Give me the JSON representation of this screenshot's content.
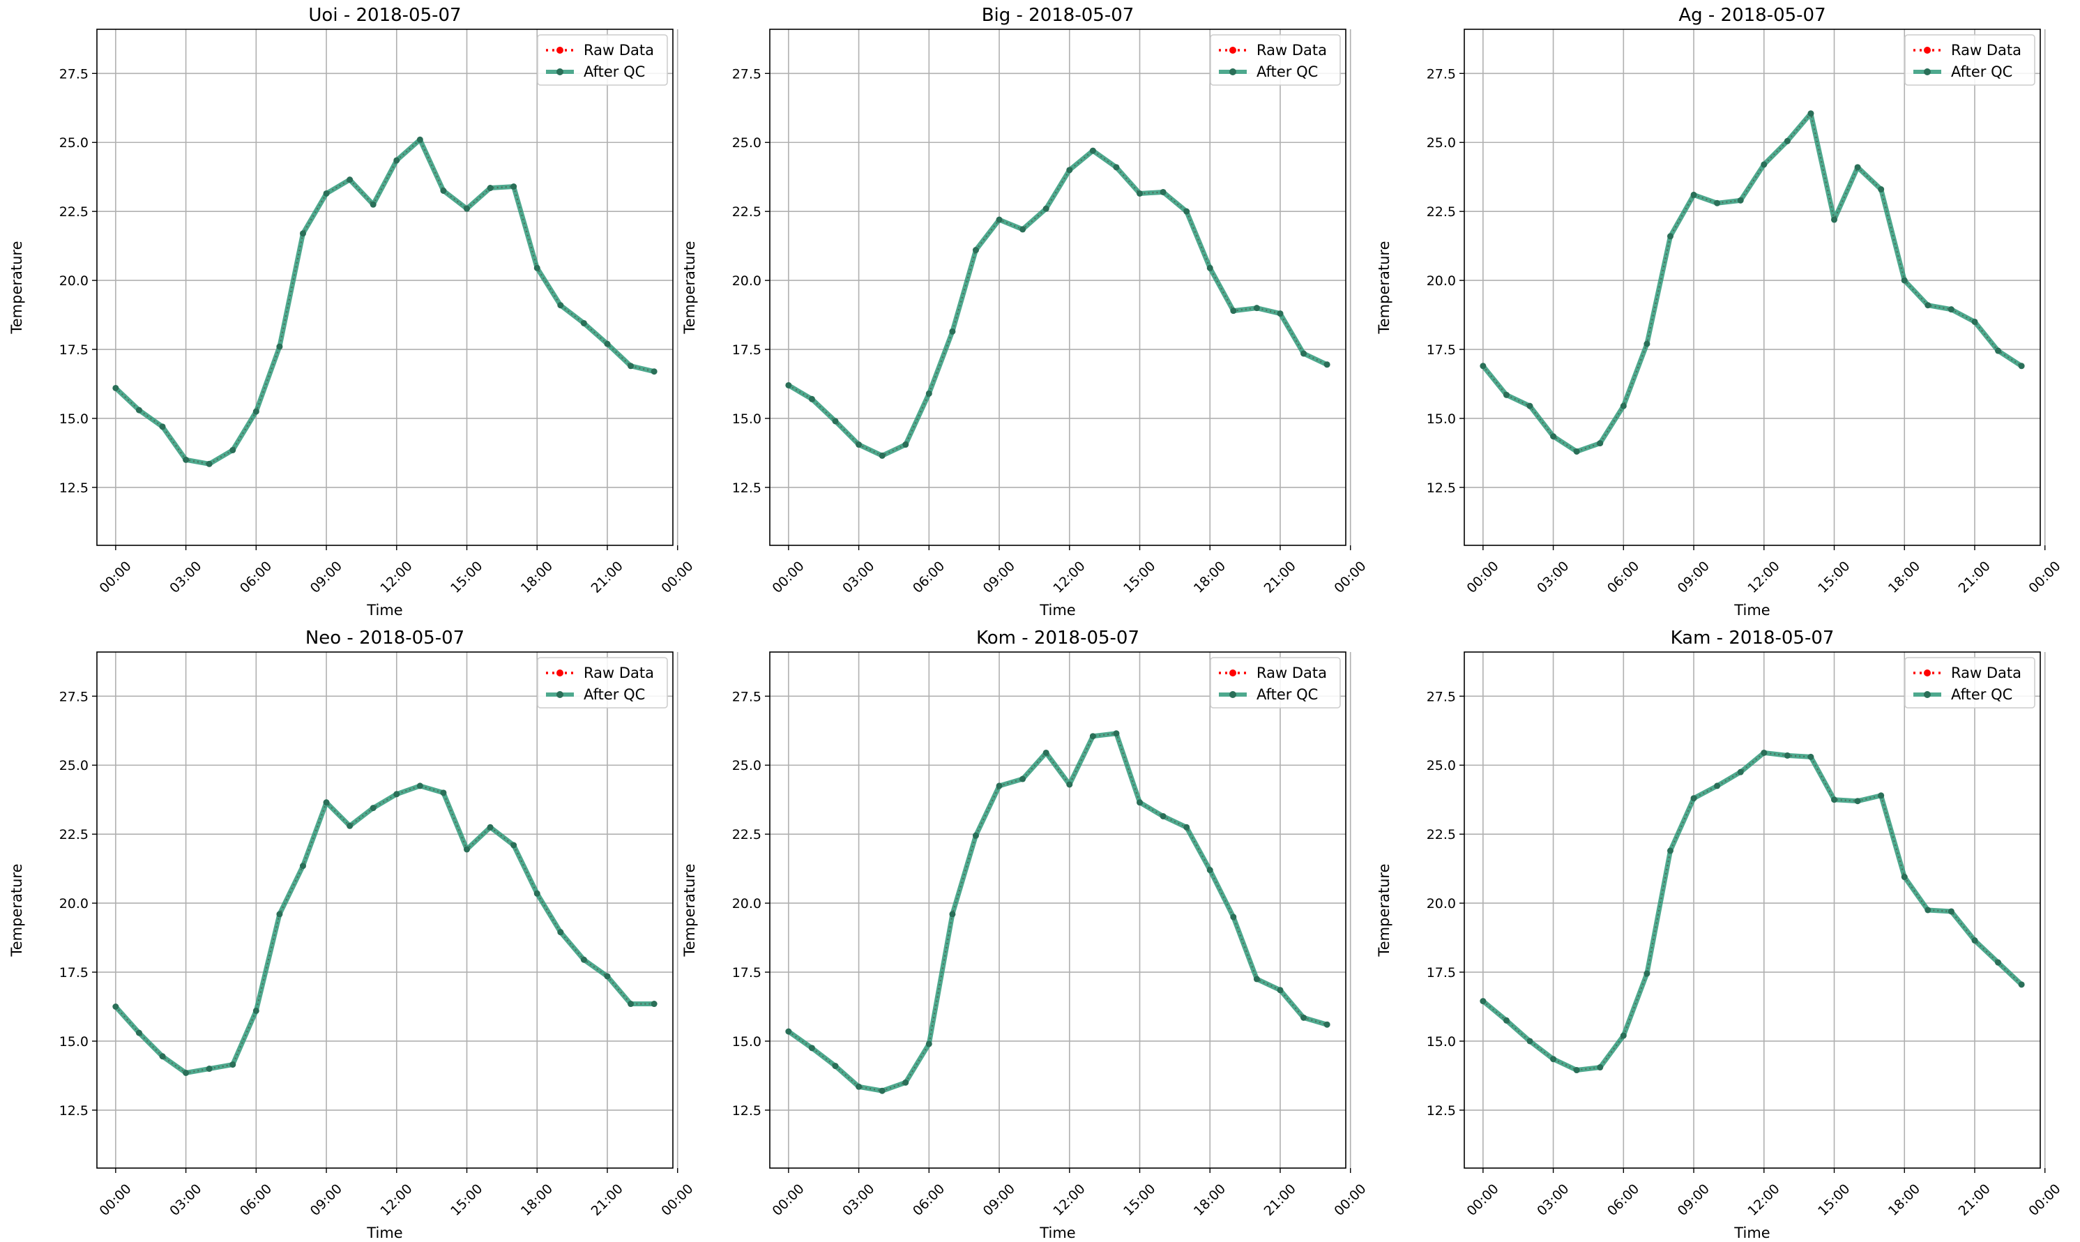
{
  "chart_data": [
    {
      "type": "line",
      "title": "Uoi - 2018-05-07",
      "xlabel": "Time",
      "ylabel": "Temperature",
      "ylim": [
        10.4,
        29.1
      ],
      "xlim": [
        -0.8,
        23.8
      ],
      "yticks": [
        "12.5",
        "15.0",
        "17.5",
        "20.0",
        "22.5",
        "25.0",
        "27.5"
      ],
      "xticks": [
        "00:00",
        "03:00",
        "06:00",
        "09:00",
        "12:00",
        "15:00",
        "18:00",
        "21:00",
        "00:00"
      ],
      "grid": true,
      "legend": "upper-right",
      "x": [
        0,
        1,
        2,
        3,
        4,
        5,
        6,
        7,
        8,
        9,
        10,
        11,
        12,
        13,
        14,
        15,
        16,
        17,
        18,
        19,
        20,
        21,
        22,
        23
      ],
      "series": [
        {
          "name": "Raw Data",
          "color": "#ff0000",
          "values": [
            16.1,
            15.3,
            14.7,
            13.5,
            13.35,
            13.85,
            15.25,
            17.6,
            21.7,
            23.15,
            23.65,
            22.75,
            24.35,
            25.1,
            23.25,
            22.6,
            23.35,
            23.4,
            20.45,
            19.1,
            18.45,
            17.7,
            16.9,
            16.7
          ]
        },
        {
          "name": "After QC",
          "color": "#2f9a7a",
          "values": [
            16.1,
            15.3,
            14.7,
            13.5,
            13.35,
            13.85,
            15.25,
            17.6,
            21.7,
            23.15,
            23.65,
            22.75,
            24.35,
            25.1,
            23.25,
            22.6,
            23.35,
            23.4,
            20.45,
            19.1,
            18.45,
            17.7,
            16.9,
            16.7
          ]
        }
      ]
    },
    {
      "type": "line",
      "title": "Big - 2018-05-07",
      "xlabel": "Time",
      "ylabel": "Temperature",
      "ylim": [
        10.4,
        29.1
      ],
      "xlim": [
        -0.8,
        23.8
      ],
      "yticks": [
        "12.5",
        "15.0",
        "17.5",
        "20.0",
        "22.5",
        "25.0",
        "27.5"
      ],
      "xticks": [
        "00:00",
        "03:00",
        "06:00",
        "09:00",
        "12:00",
        "15:00",
        "18:00",
        "21:00",
        "00:00"
      ],
      "grid": true,
      "legend": "upper-right",
      "x": [
        0,
        1,
        2,
        3,
        4,
        5,
        6,
        7,
        8,
        9,
        10,
        11,
        12,
        13,
        14,
        15,
        16,
        17,
        18,
        19,
        20,
        21,
        22,
        23
      ],
      "series": [
        {
          "name": "Raw Data",
          "color": "#ff0000",
          "values": [
            16.2,
            15.7,
            14.9,
            14.05,
            13.65,
            14.05,
            15.9,
            18.15,
            21.1,
            22.2,
            21.85,
            22.6,
            24.0,
            24.7,
            24.1,
            23.15,
            23.2,
            22.5,
            20.45,
            18.9,
            19.0,
            18.8,
            17.35,
            16.95
          ]
        },
        {
          "name": "After QC",
          "color": "#2f9a7a",
          "values": [
            16.2,
            15.7,
            14.9,
            14.05,
            13.65,
            14.05,
            15.9,
            18.15,
            21.1,
            22.2,
            21.85,
            22.6,
            24.0,
            24.7,
            24.1,
            23.15,
            23.2,
            22.5,
            20.45,
            18.9,
            19.0,
            18.8,
            17.35,
            16.95
          ]
        }
      ]
    },
    {
      "type": "line",
      "title": "Ag - 2018-05-07",
      "xlabel": "Time",
      "ylabel": "Temperature",
      "ylim": [
        10.4,
        29.1
      ],
      "xlim": [
        -0.8,
        23.8
      ],
      "yticks": [
        "12.5",
        "15.0",
        "17.5",
        "20.0",
        "22.5",
        "25.0",
        "27.5"
      ],
      "xticks": [
        "00:00",
        "03:00",
        "06:00",
        "09:00",
        "12:00",
        "15:00",
        "18:00",
        "21:00",
        "00:00"
      ],
      "grid": true,
      "legend": "upper-right",
      "x": [
        0,
        1,
        2,
        3,
        4,
        5,
        6,
        7,
        8,
        9,
        10,
        11,
        12,
        13,
        14,
        15,
        16,
        17,
        18,
        19,
        20,
        21,
        22,
        23
      ],
      "series": [
        {
          "name": "Raw Data",
          "color": "#ff0000",
          "values": [
            16.9,
            15.85,
            15.45,
            14.35,
            13.8,
            14.1,
            15.45,
            17.7,
            21.6,
            23.1,
            22.8,
            22.9,
            24.2,
            25.05,
            26.05,
            22.2,
            24.1,
            23.3,
            20.0,
            19.1,
            18.95,
            18.5,
            17.45,
            16.9
          ]
        },
        {
          "name": "After QC",
          "color": "#2f9a7a",
          "values": [
            16.9,
            15.85,
            15.45,
            14.35,
            13.8,
            14.1,
            15.45,
            17.7,
            21.6,
            23.1,
            22.8,
            22.9,
            24.2,
            25.05,
            26.05,
            22.2,
            24.1,
            23.3,
            20.0,
            19.1,
            18.95,
            18.5,
            17.45,
            16.9
          ]
        }
      ]
    },
    {
      "type": "line",
      "title": "Neo - 2018-05-07",
      "xlabel": "Time",
      "ylabel": "Temperature",
      "ylim": [
        10.4,
        29.1
      ],
      "xlim": [
        -0.8,
        23.8
      ],
      "yticks": [
        "12.5",
        "15.0",
        "17.5",
        "20.0",
        "22.5",
        "25.0",
        "27.5"
      ],
      "xticks": [
        "00:00",
        "03:00",
        "06:00",
        "09:00",
        "12:00",
        "15:00",
        "18:00",
        "21:00",
        "00:00"
      ],
      "grid": true,
      "legend": "upper-right",
      "x": [
        0,
        1,
        2,
        3,
        4,
        5,
        6,
        7,
        8,
        9,
        10,
        11,
        12,
        13,
        14,
        15,
        16,
        17,
        18,
        19,
        20,
        21,
        22,
        23
      ],
      "series": [
        {
          "name": "Raw Data",
          "color": "#ff0000",
          "values": [
            16.25,
            15.3,
            14.45,
            13.85,
            14.0,
            14.15,
            16.1,
            19.6,
            21.35,
            23.65,
            22.8,
            23.45,
            23.95,
            24.25,
            24.0,
            21.95,
            22.75,
            22.1,
            20.35,
            18.95,
            17.95,
            17.35,
            16.35,
            16.35
          ]
        },
        {
          "name": "After QC",
          "color": "#2f9a7a",
          "values": [
            16.25,
            15.3,
            14.45,
            13.85,
            14.0,
            14.15,
            16.1,
            19.6,
            21.35,
            23.65,
            22.8,
            23.45,
            23.95,
            24.25,
            24.0,
            21.95,
            22.75,
            22.1,
            20.35,
            18.95,
            17.95,
            17.35,
            16.35,
            16.35
          ]
        }
      ]
    },
    {
      "type": "line",
      "title": "Kom - 2018-05-07",
      "xlabel": "Time",
      "ylabel": "Temperature",
      "ylim": [
        10.4,
        29.1
      ],
      "xlim": [
        -0.8,
        23.8
      ],
      "yticks": [
        "12.5",
        "15.0",
        "17.5",
        "20.0",
        "22.5",
        "25.0",
        "27.5"
      ],
      "xticks": [
        "00:00",
        "03:00",
        "06:00",
        "09:00",
        "12:00",
        "15:00",
        "18:00",
        "21:00",
        "00:00"
      ],
      "grid": true,
      "legend": "upper-right",
      "x": [
        0,
        1,
        2,
        3,
        4,
        5,
        6,
        7,
        8,
        9,
        10,
        11,
        12,
        13,
        14,
        15,
        16,
        17,
        18,
        19,
        20,
        21,
        22,
        23
      ],
      "series": [
        {
          "name": "Raw Data",
          "color": "#ff0000",
          "values": [
            15.35,
            14.75,
            14.1,
            13.35,
            13.2,
            13.5,
            14.9,
            19.6,
            22.45,
            24.25,
            24.5,
            25.45,
            24.3,
            26.05,
            26.15,
            23.65,
            23.15,
            22.75,
            21.2,
            19.5,
            17.25,
            16.85,
            15.85,
            15.6
          ]
        },
        {
          "name": "After QC",
          "color": "#2f9a7a",
          "values": [
            15.35,
            14.75,
            14.1,
            13.35,
            13.2,
            13.5,
            14.9,
            19.6,
            22.45,
            24.25,
            24.5,
            25.45,
            24.3,
            26.05,
            26.15,
            23.65,
            23.15,
            22.75,
            21.2,
            19.5,
            17.25,
            16.85,
            15.85,
            15.6
          ]
        }
      ]
    },
    {
      "type": "line",
      "title": "Kam - 2018-05-07",
      "xlabel": "Time",
      "ylabel": "Temperature",
      "ylim": [
        10.4,
        29.1
      ],
      "xlim": [
        -0.8,
        23.8
      ],
      "yticks": [
        "12.5",
        "15.0",
        "17.5",
        "20.0",
        "22.5",
        "25.0",
        "27.5"
      ],
      "xticks": [
        "00:00",
        "03:00",
        "06:00",
        "09:00",
        "12:00",
        "15:00",
        "18:00",
        "21:00",
        "00:00"
      ],
      "grid": true,
      "legend": "upper-right",
      "x": [
        0,
        1,
        2,
        3,
        4,
        5,
        6,
        7,
        8,
        9,
        10,
        11,
        12,
        13,
        14,
        15,
        16,
        17,
        18,
        19,
        20,
        21,
        22,
        23
      ],
      "series": [
        {
          "name": "Raw Data",
          "color": "#ff0000",
          "values": [
            16.45,
            15.75,
            15.0,
            14.35,
            13.95,
            14.05,
            15.2,
            17.45,
            21.9,
            23.8,
            24.25,
            24.75,
            25.45,
            25.35,
            25.3,
            23.75,
            23.7,
            23.9,
            20.95,
            19.75,
            19.7,
            18.65,
            17.85,
            17.05
          ]
        },
        {
          "name": "After QC",
          "color": "#2f9a7a",
          "values": [
            16.45,
            15.75,
            15.0,
            14.35,
            13.95,
            14.05,
            15.2,
            17.45,
            21.9,
            23.8,
            24.25,
            24.75,
            25.45,
            25.35,
            25.3,
            23.75,
            23.7,
            23.9,
            20.95,
            19.75,
            19.7,
            18.65,
            17.85,
            17.05
          ]
        }
      ]
    }
  ]
}
